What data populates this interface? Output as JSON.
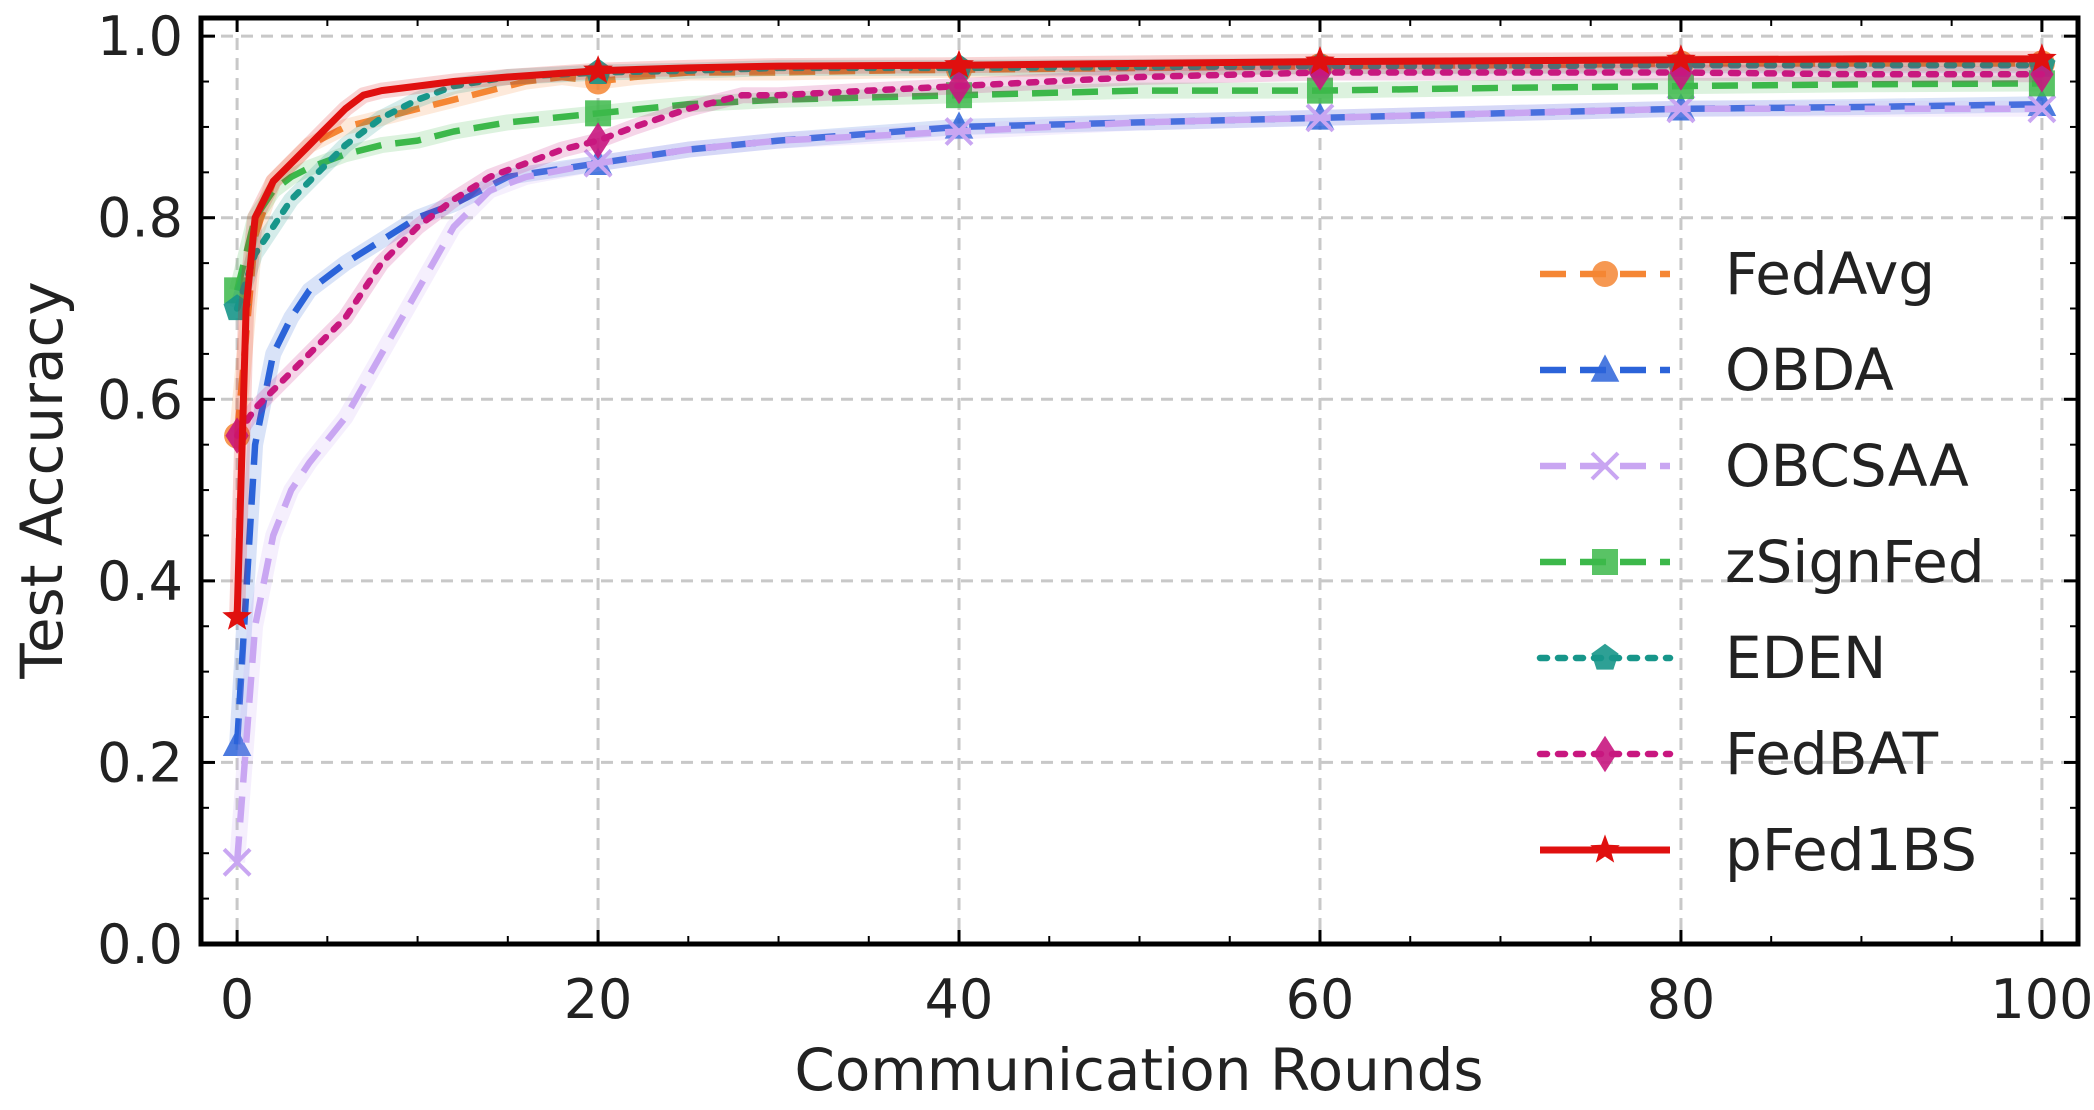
{
  "chart_data": {
    "type": "line",
    "title": "",
    "xlabel": "Communication Rounds",
    "ylabel": "Test Accuracy",
    "xlim": [
      -2,
      102
    ],
    "ylim": [
      0.0,
      1.02
    ],
    "xticks": [
      0,
      20,
      40,
      60,
      80,
      100
    ],
    "yticks": [
      0.0,
      0.2,
      0.4,
      0.6,
      0.8,
      1.0
    ],
    "xtick_labels": [
      "0",
      "20",
      "40",
      "60",
      "80",
      "100"
    ],
    "ytick_labels": [
      "0.0",
      "0.2",
      "0.4",
      "0.6",
      "0.8",
      "1.0"
    ],
    "grid": true,
    "legend_position": "center-right",
    "marker_every": [
      0,
      20,
      40,
      60,
      80,
      100
    ],
    "series": [
      {
        "name": "FedAvg",
        "color": "#f58634",
        "dash": "dash",
        "marker": "circle",
        "x": [
          0,
          1,
          2,
          3,
          4,
          5,
          6,
          8,
          10,
          12,
          14,
          16,
          18,
          20,
          22,
          25,
          30,
          35,
          40,
          50,
          60,
          70,
          80,
          90,
          100
        ],
        "y": [
          0.56,
          0.78,
          0.84,
          0.86,
          0.88,
          0.89,
          0.9,
          0.91,
          0.92,
          0.93,
          0.94,
          0.95,
          0.955,
          0.95,
          0.955,
          0.96,
          0.96,
          0.962,
          0.963,
          0.965,
          0.967,
          0.968,
          0.97,
          0.97,
          0.97
        ]
      },
      {
        "name": "OBDA",
        "color": "#2b63d9",
        "dash": "dash",
        "marker": "triangle",
        "x": [
          0,
          1,
          2,
          3,
          4,
          6,
          8,
          10,
          12,
          15,
          20,
          25,
          30,
          40,
          50,
          60,
          70,
          80,
          90,
          100
        ],
        "y": [
          0.22,
          0.55,
          0.65,
          0.69,
          0.72,
          0.75,
          0.775,
          0.8,
          0.815,
          0.845,
          0.86,
          0.875,
          0.885,
          0.9,
          0.905,
          0.91,
          0.915,
          0.92,
          0.922,
          0.925
        ]
      },
      {
        "name": "OBCSAA",
        "color": "#c9a6f2",
        "dash": "dash",
        "marker": "x",
        "x": [
          0,
          1,
          2,
          3,
          4,
          6,
          8,
          10,
          12,
          14,
          16,
          20,
          25,
          30,
          40,
          50,
          60,
          70,
          80,
          90,
          100
        ],
        "y": [
          0.09,
          0.35,
          0.45,
          0.5,
          0.53,
          0.58,
          0.65,
          0.72,
          0.79,
          0.83,
          0.845,
          0.86,
          0.875,
          0.885,
          0.895,
          0.905,
          0.91,
          0.915,
          0.92,
          0.92,
          0.92
        ]
      },
      {
        "name": "zSignFed",
        "color": "#3cb84a",
        "dash": "dash",
        "marker": "square",
        "x": [
          0,
          1,
          2,
          3,
          4,
          6,
          8,
          10,
          12,
          15,
          20,
          25,
          30,
          40,
          50,
          60,
          70,
          80,
          90,
          100
        ],
        "y": [
          0.72,
          0.8,
          0.83,
          0.845,
          0.855,
          0.87,
          0.88,
          0.885,
          0.895,
          0.905,
          0.915,
          0.925,
          0.93,
          0.935,
          0.94,
          0.94,
          0.943,
          0.945,
          0.947,
          0.948
        ]
      },
      {
        "name": "EDEN",
        "color": "#17968a",
        "dash": "dot",
        "marker": "pentagon",
        "x": [
          0,
          1,
          2,
          3,
          4,
          5,
          6,
          8,
          10,
          12,
          15,
          20,
          25,
          30,
          40,
          50,
          60,
          70,
          80,
          90,
          100
        ],
        "y": [
          0.7,
          0.76,
          0.79,
          0.82,
          0.84,
          0.86,
          0.88,
          0.91,
          0.93,
          0.945,
          0.955,
          0.96,
          0.962,
          0.965,
          0.965,
          0.966,
          0.967,
          0.967,
          0.968,
          0.968,
          0.968
        ]
      },
      {
        "name": "FedBAT",
        "color": "#c8177f",
        "dash": "dot",
        "marker": "diamond",
        "x": [
          0,
          1,
          2,
          3,
          4,
          6,
          8,
          10,
          12,
          14,
          16,
          18,
          20,
          22,
          25,
          28,
          30,
          35,
          40,
          45,
          50,
          60,
          70,
          80,
          90,
          100
        ],
        "y": [
          0.56,
          0.59,
          0.61,
          0.63,
          0.65,
          0.69,
          0.75,
          0.79,
          0.82,
          0.845,
          0.86,
          0.875,
          0.885,
          0.9,
          0.92,
          0.935,
          0.935,
          0.94,
          0.945,
          0.95,
          0.955,
          0.96,
          0.96,
          0.96,
          0.958,
          0.958
        ]
      },
      {
        "name": "pFed1BS",
        "color": "#e0100f",
        "dash": "solid",
        "marker": "star",
        "x": [
          0,
          0.5,
          1,
          2,
          3,
          4,
          5,
          6,
          7,
          8,
          10,
          12,
          15,
          20,
          25,
          30,
          40,
          50,
          60,
          70,
          80,
          90,
          100
        ],
        "y": [
          0.36,
          0.7,
          0.8,
          0.84,
          0.86,
          0.88,
          0.9,
          0.92,
          0.935,
          0.94,
          0.945,
          0.95,
          0.955,
          0.962,
          0.965,
          0.967,
          0.968,
          0.97,
          0.972,
          0.973,
          0.974,
          0.975,
          0.975
        ]
      }
    ]
  }
}
